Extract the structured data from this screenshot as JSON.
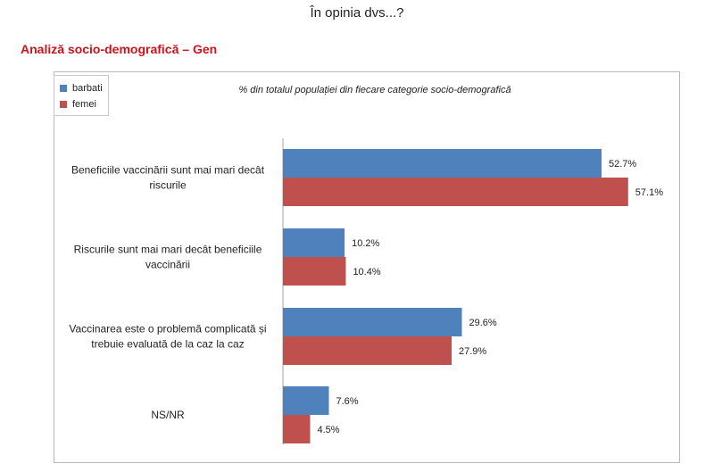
{
  "page": {
    "title": "În opinia dvs...?",
    "section_heading": "Analiză socio-demografică – Gen"
  },
  "colors": {
    "barbati": "#4f81bd",
    "femei": "#c0504d",
    "heading": "#d0121b",
    "axis": "#a6a6a6"
  },
  "chart_data": {
    "type": "bar",
    "orientation": "horizontal",
    "subtitle": "% din totalul populației din fiecare categorie socio-demografică",
    "categories": [
      [
        "Beneficiile vaccinării sunt mai mari decât",
        "riscurile"
      ],
      [
        "Riscurile sunt mai mari decât beneficiile",
        "vaccinării"
      ],
      [
        "Vaccinarea este o problemă complicată și",
        "trebuie evaluată de la caz la caz"
      ],
      [
        "NS/NR"
      ]
    ],
    "series": [
      {
        "name": "barbati",
        "values": [
          52.7,
          10.2,
          29.6,
          7.6
        ],
        "labels": [
          "52.7%",
          "10.2%",
          "29.6%",
          "7.6%"
        ]
      },
      {
        "name": "femei",
        "values": [
          57.1,
          10.4,
          27.9,
          4.5
        ],
        "labels": [
          "57.1%",
          "10.4%",
          "27.9%",
          "4.5%"
        ]
      }
    ],
    "xlim": [
      0,
      60
    ],
    "grid": false,
    "legend_position": "top-left"
  }
}
